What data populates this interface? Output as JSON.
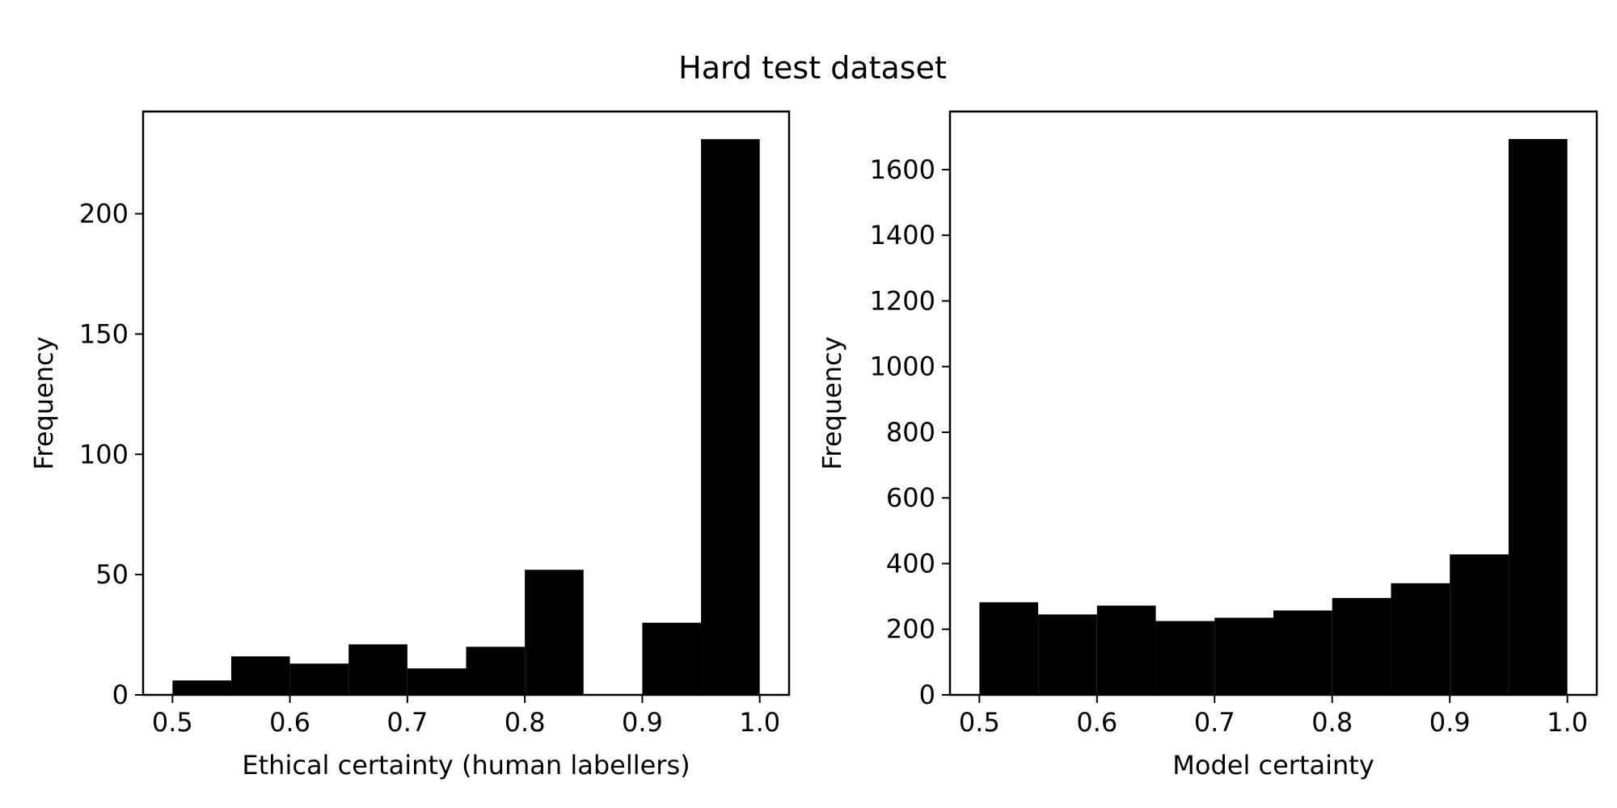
{
  "figure": {
    "title": "Hard test dataset",
    "bar_color": "#000000",
    "axis_color": "#000000",
    "background": "#ffffff"
  },
  "chart_data": [
    {
      "type": "bar",
      "title": "",
      "xlabel": "Ethical certainty (human labellers)",
      "ylabel": "Frequency",
      "bin_edges": [
        0.5,
        0.55,
        0.6,
        0.65,
        0.7,
        0.75,
        0.8,
        0.85,
        0.9,
        0.95,
        1.0
      ],
      "values": [
        6,
        16,
        13,
        21,
        11,
        20,
        52,
        0,
        30,
        231
      ],
      "xlim": [
        0.475,
        1.025
      ],
      "ylim": [
        0,
        242.5
      ],
      "xticks": [
        0.5,
        0.6,
        0.7,
        0.8,
        0.9,
        1.0
      ],
      "xtick_labels": [
        "0.5",
        "0.6",
        "0.7",
        "0.8",
        "0.9",
        "1.0"
      ],
      "yticks": [
        0,
        50,
        100,
        150,
        200
      ],
      "ytick_labels": [
        "0",
        "50",
        "100",
        "150",
        "200"
      ],
      "grid": false,
      "legend": "none"
    },
    {
      "type": "bar",
      "title": "",
      "xlabel": "Model certainty",
      "ylabel": "Frequency",
      "bin_edges": [
        0.5,
        0.55,
        0.6,
        0.65,
        0.7,
        0.75,
        0.8,
        0.85,
        0.9,
        0.95,
        1.0
      ],
      "values": [
        282,
        245,
        272,
        225,
        235,
        257,
        295,
        340,
        428,
        1693
      ],
      "xlim": [
        0.475,
        1.025
      ],
      "ylim": [
        0,
        1777
      ],
      "xticks": [
        0.5,
        0.6,
        0.7,
        0.8,
        0.9,
        1.0
      ],
      "xtick_labels": [
        "0.5",
        "0.6",
        "0.7",
        "0.8",
        "0.9",
        "1.0"
      ],
      "yticks": [
        0,
        200,
        400,
        600,
        800,
        1000,
        1200,
        1400,
        1600
      ],
      "ytick_labels": [
        "0",
        "200",
        "400",
        "600",
        "800",
        "1000",
        "1200",
        "1400",
        "1600"
      ],
      "grid": false,
      "legend": "none"
    }
  ]
}
